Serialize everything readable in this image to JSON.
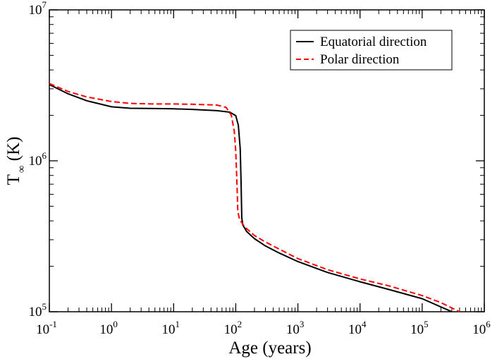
{
  "chart_data": {
    "type": "line",
    "xlabel": "Age (years)",
    "ylabel_main": "T",
    "ylabel_sub": "∞",
    "ylabel_unit": "(K)",
    "xscale": "log",
    "yscale": "log",
    "xlim": [
      0.1,
      1000000
    ],
    "ylim": [
      100000,
      10000000
    ],
    "grid": false,
    "legend_position": "top-right",
    "x_ticks": [
      {
        "base": "10",
        "exp": "-1",
        "value": 0.1
      },
      {
        "base": "10",
        "exp": "0",
        "value": 1
      },
      {
        "base": "10",
        "exp": "1",
        "value": 10
      },
      {
        "base": "10",
        "exp": "2",
        "value": 100
      },
      {
        "base": "10",
        "exp": "3",
        "value": 1000
      },
      {
        "base": "10",
        "exp": "4",
        "value": 10000
      },
      {
        "base": "10",
        "exp": "5",
        "value": 100000
      },
      {
        "base": "10",
        "exp": "6",
        "value": 1000000
      }
    ],
    "y_ticks": [
      {
        "base": "10",
        "exp": "5",
        "value": 100000
      },
      {
        "base": "10",
        "exp": "6",
        "value": 1000000
      },
      {
        "base": "10",
        "exp": "7",
        "value": 10000000
      }
    ],
    "series": [
      {
        "name": "Equatorial direction",
        "color": "#000000",
        "dash": "solid",
        "points": [
          [
            0.1,
            3200000
          ],
          [
            0.2,
            2780000
          ],
          [
            0.4,
            2500000
          ],
          [
            1,
            2280000
          ],
          [
            2,
            2230000
          ],
          [
            5,
            2220000
          ],
          [
            10,
            2210000
          ],
          [
            20,
            2190000
          ],
          [
            50,
            2150000
          ],
          [
            80,
            2100000
          ],
          [
            100,
            1990000
          ],
          [
            110,
            1720000
          ],
          [
            118,
            1200000
          ],
          [
            122,
            700000
          ],
          [
            125,
            420000
          ],
          [
            130,
            375000
          ],
          [
            150,
            340000
          ],
          [
            200,
            305000
          ],
          [
            300,
            273000
          ],
          [
            500,
            245000
          ],
          [
            1000,
            215000
          ],
          [
            3000,
            182000
          ],
          [
            10000,
            158000
          ],
          [
            30000,
            140000
          ],
          [
            100000,
            122000
          ],
          [
            300000,
            100000
          ]
        ]
      },
      {
        "name": "Polar direction",
        "color": "#ff0000",
        "dash": "dashed",
        "points": [
          [
            0.1,
            3250000
          ],
          [
            0.2,
            2880000
          ],
          [
            0.4,
            2650000
          ],
          [
            1,
            2470000
          ],
          [
            2,
            2400000
          ],
          [
            5,
            2380000
          ],
          [
            10,
            2380000
          ],
          [
            20,
            2370000
          ],
          [
            50,
            2340000
          ],
          [
            70,
            2260000
          ],
          [
            85,
            2000000
          ],
          [
            95,
            1550000
          ],
          [
            100,
            1150000
          ],
          [
            104,
            750000
          ],
          [
            108,
            460000
          ],
          [
            115,
            410000
          ],
          [
            130,
            380000
          ],
          [
            150,
            355000
          ],
          [
            200,
            320000
          ],
          [
            300,
            290000
          ],
          [
            500,
            260000
          ],
          [
            1000,
            225000
          ],
          [
            3000,
            190000
          ],
          [
            10000,
            165000
          ],
          [
            30000,
            148000
          ],
          [
            100000,
            128000
          ],
          [
            200000,
            115000
          ],
          [
            400000,
            100000
          ]
        ]
      }
    ]
  }
}
